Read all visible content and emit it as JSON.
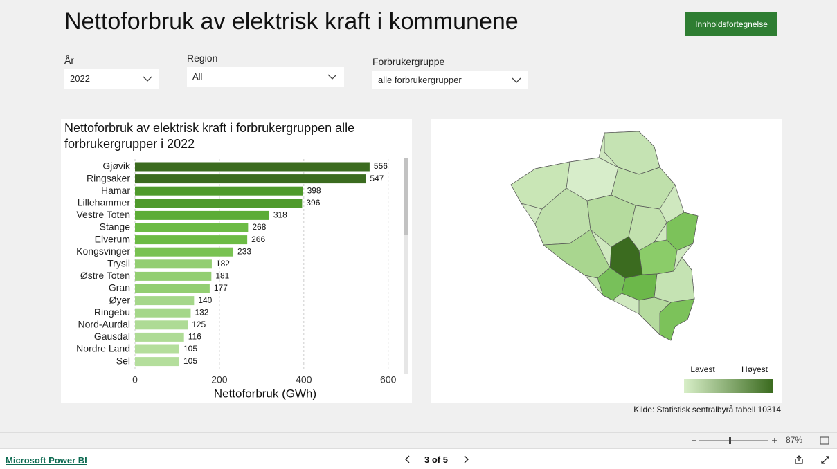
{
  "header": {
    "title": "Nettoforbruk av elektrisk kraft i kommunene",
    "button": "Innholdsfortegnelse"
  },
  "filters": [
    {
      "label": "År",
      "value": "2022"
    },
    {
      "label": "Region",
      "value": "All"
    },
    {
      "label": "Forbrukergruppe",
      "value": "alle forbrukergrupper"
    }
  ],
  "chart_data": {
    "type": "bar",
    "orientation": "horizontal",
    "title": "Nettoforbruk av elektrisk kraft i forbrukergruppen alle forbrukergrupper i 2022",
    "categories": [
      "Gjøvik",
      "Ringsaker",
      "Hamar",
      "Lillehammer",
      "Vestre Toten",
      "Stange",
      "Elverum",
      "Kongsvinger",
      "Trysil",
      "Østre Toten",
      "Gran",
      "Øyer",
      "Ringebu",
      "Nord-Aurdal",
      "Gausdal",
      "Nordre Land",
      "Sel"
    ],
    "values": [
      556,
      547,
      398,
      396,
      318,
      268,
      266,
      233,
      182,
      181,
      177,
      140,
      132,
      125,
      116,
      105,
      105
    ],
    "colors": [
      "#3b6b1f",
      "#3b6b1f",
      "#4f9a2c",
      "#4f9a2c",
      "#5cac36",
      "#6cbb45",
      "#6cbb45",
      "#79c252",
      "#93ce72",
      "#93ce72",
      "#93ce72",
      "#a5d78a",
      "#a5d78a",
      "#aedb95",
      "#aedb95",
      "#b4de9c",
      "#b4de9c"
    ],
    "xlim": [
      0,
      630
    ],
    "xticks": [
      0,
      200,
      400,
      600
    ],
    "x_label": "Nettoforbruk (GWh)",
    "grid": true
  },
  "map": {
    "legend": {
      "low": "Lavest",
      "high": "Høyest",
      "low_color": "#d8efc8",
      "high_color": "#3b6b1f"
    }
  },
  "source": "Kilde: Statistisk sentralbyrå tabell 10314",
  "zoom": "87%",
  "footer": {
    "brand": "Microsoft Power BI",
    "page": "3 of 5"
  }
}
